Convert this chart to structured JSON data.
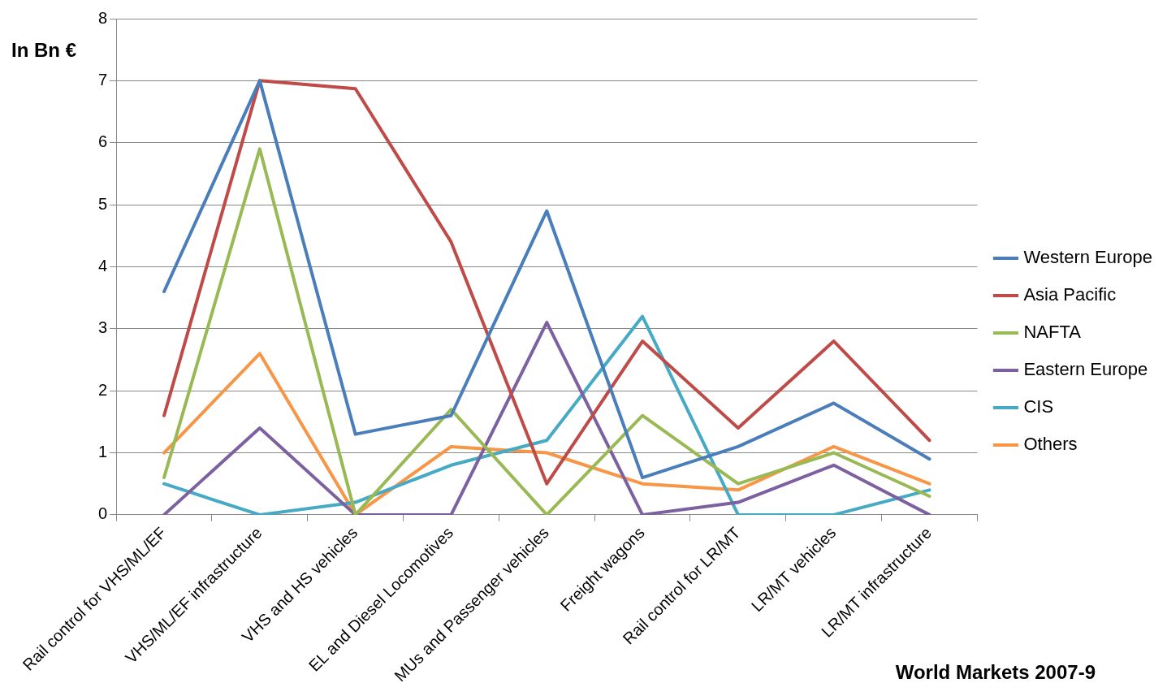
{
  "chart_data": {
    "type": "line",
    "ylabel": "In Bn €",
    "annotations": [
      "World Markets 2007-9"
    ],
    "categories": [
      "Rail control for VHS/ML/EF",
      "VHS/ML/EF infrastructure",
      "VHS and HS vehicles",
      "EL and Diesel Locomotives",
      "MUs and Passenger vehicles",
      "Freight wagons",
      "Rail control for LR/MT",
      "LR/MT vehicles",
      "LR/MT infrastructure"
    ],
    "series": [
      {
        "name": "Western Europe",
        "color": "#4a7ebb",
        "values": [
          3.6,
          7.0,
          1.3,
          1.6,
          4.9,
          0.6,
          1.1,
          1.8,
          0.9
        ]
      },
      {
        "name": "Asia Pacific",
        "color": "#be4b48",
        "values": [
          1.6,
          7.0,
          6.87,
          4.4,
          0.5,
          2.8,
          1.4,
          2.8,
          1.2
        ]
      },
      {
        "name": "NAFTA",
        "color": "#98b954",
        "values": [
          0.6,
          5.9,
          0,
          1.7,
          0,
          1.6,
          0.5,
          1.0,
          0.3
        ]
      },
      {
        "name": "Eastern Europe",
        "color": "#7d60a0",
        "values": [
          0,
          1.4,
          0,
          0,
          3.1,
          0,
          0.2,
          0.8,
          0
        ]
      },
      {
        "name": "CIS",
        "color": "#46aac5",
        "values": [
          0.5,
          0,
          0.2,
          0.8,
          1.2,
          3.2,
          0,
          0,
          0.4
        ]
      },
      {
        "name": "Others",
        "color": "#f79646",
        "values": [
          1.0,
          2.6,
          0,
          1.1,
          1.0,
          0.5,
          0.4,
          1.1,
          0.5
        ]
      }
    ],
    "ylim": [
      0,
      8
    ],
    "yticks": [
      0,
      1,
      2,
      3,
      4,
      5,
      6,
      7,
      8
    ],
    "grid": "y",
    "legend": "right",
    "marker": "none",
    "line_style": "solid"
  }
}
